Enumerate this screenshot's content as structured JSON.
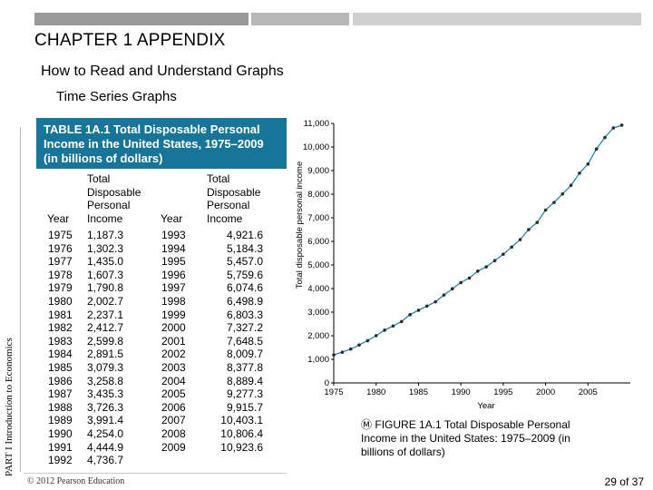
{
  "header": {
    "chapter": "CHAPTER 1 APPENDIX",
    "subtitle": "How to Read and Understand Graphs",
    "section": "Time Series Graphs"
  },
  "side_label": "PART I Introduction to Economics",
  "table": {
    "title": "TABLE 1A.1  Total Disposable Personal Income in the United States, 1975–2009 (in billions of dollars)",
    "col_year": "Year",
    "col_income": "Total Disposable Personal Income",
    "left_years": [
      "1975",
      "1976",
      "1977",
      "1978",
      "1979",
      "1980",
      "1981",
      "1982",
      "1983",
      "1984",
      "1985",
      "1986",
      "1987",
      "1988",
      "1989",
      "1990",
      "1991",
      "1992"
    ],
    "left_values": [
      "1,187.3",
      "1,302.3",
      "1,435.0",
      "1,607.3",
      "1,790.8",
      "2,002.7",
      "2,237.1",
      "2,412.7",
      "2,599.8",
      "2,891.5",
      "3,079.3",
      "3,258.8",
      "3,435.3",
      "3,726.3",
      "3,991.4",
      "4,254.0",
      "4,444.9",
      "4,736.7"
    ],
    "right_years": [
      "1993",
      "1994",
      "1995",
      "1996",
      "1997",
      "1998",
      "1999",
      "2000",
      "2001",
      "2002",
      "2003",
      "2004",
      "2005",
      "2006",
      "2007",
      "2008",
      "2009"
    ],
    "right_values": [
      "4,921.6",
      "5,184.3",
      "5,457.0",
      "5,759.6",
      "6,074.6",
      "6,498.9",
      "6,803.3",
      "7,327.2",
      "7,648.5",
      "8,009.7",
      "8,377.8",
      "8,889.4",
      "9,277.3",
      "9,915.7",
      "10,403.1",
      "10,806.4",
      "10,923.6"
    ]
  },
  "figure": {
    "icon": "Ⓜ",
    "caption": "FIGURE 1A.1  Total Disposable Personal Income in the United States: 1975–2009 (in billions of dollars)"
  },
  "footer": {
    "copyright": "© 2012 Pearson Education",
    "page": "29 of 37"
  },
  "colors": {
    "header_bg": "#18759a",
    "line": "#1a7fa3"
  },
  "chart_data": {
    "type": "line",
    "title": "",
    "xlabel": "Year",
    "ylabel": "Total disposable personal income",
    "xlim": [
      1975,
      2010
    ],
    "ylim": [
      0,
      11000
    ],
    "x_ticks": [
      "1975",
      "1980",
      "1985",
      "1990",
      "1995",
      "2000",
      "2005"
    ],
    "y_ticks": [
      "0",
      "1,000",
      "2,000",
      "3,000",
      "4,000",
      "5,000",
      "6,000",
      "7,000",
      "8,000",
      "9,000",
      "10,000",
      "11,000"
    ],
    "x": [
      1975,
      1976,
      1977,
      1978,
      1979,
      1980,
      1981,
      1982,
      1983,
      1984,
      1985,
      1986,
      1987,
      1988,
      1989,
      1990,
      1991,
      1992,
      1993,
      1994,
      1995,
      1996,
      1997,
      1998,
      1999,
      2000,
      2001,
      2002,
      2003,
      2004,
      2005,
      2006,
      2007,
      2008,
      2009
    ],
    "values": [
      1187.3,
      1302.3,
      1435.0,
      1607.3,
      1790.8,
      2002.7,
      2237.1,
      2412.7,
      2599.8,
      2891.5,
      3079.3,
      3258.8,
      3435.3,
      3726.3,
      3991.4,
      4254.0,
      4444.9,
      4736.7,
      4921.6,
      5184.3,
      5457.0,
      5759.6,
      6074.6,
      6498.9,
      6803.3,
      7327.2,
      7648.5,
      8009.7,
      8377.8,
      8889.4,
      9277.3,
      9915.7,
      10403.1,
      10806.4,
      10923.6
    ]
  }
}
